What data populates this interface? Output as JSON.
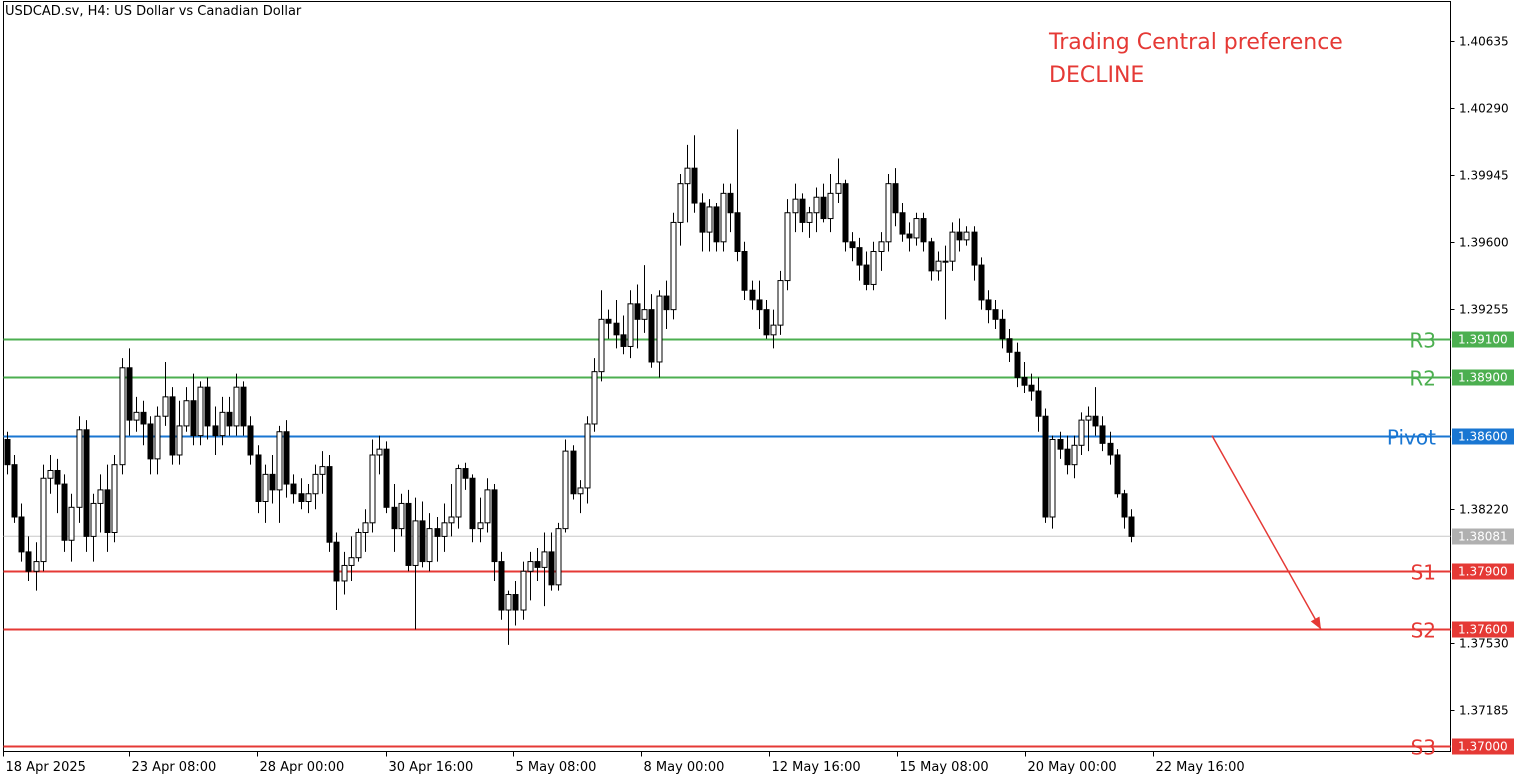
{
  "header": {
    "title": "USDCAD.sv, H4:  US Dollar vs Canadian Dollar"
  },
  "annotation": {
    "line1": "Trading Central preference",
    "line2": "DECLINE",
    "color": "#e53935"
  },
  "colors": {
    "bullish_body": "#ffffff",
    "bearish_body": "#000000",
    "wick": "#000000",
    "resistance": "#4caf50",
    "pivot": "#1976d2",
    "support": "#e53935",
    "current_price": "#b0b0b0"
  },
  "chart_data": {
    "type": "candlestick",
    "symbol": "USDCAD.sv",
    "timeframe": "H4",
    "ylim": [
      1.3697,
      1.4084
    ],
    "y_ticks": [
      "1.40635",
      "1.40290",
      "1.39945",
      "1.39600",
      "1.39255",
      "1.38220",
      "1.37530",
      "1.37185"
    ],
    "x_ticks": [
      "18 Apr 2025",
      "23 Apr 08:00",
      "28 Apr 00:00",
      "30 Apr 16:00",
      "5 May 08:00",
      "8 May 00:00",
      "12 May 16:00",
      "15 May 08:00",
      "20 May 00:00",
      "22 May 16:00"
    ],
    "current_price": "1.38081",
    "levels": [
      {
        "name": "R3",
        "value": "1.39100",
        "type": "resistance"
      },
      {
        "name": "R2",
        "value": "1.38900",
        "type": "resistance"
      },
      {
        "name": "Pivot",
        "value": "1.38600",
        "type": "pivot"
      },
      {
        "name": "S1",
        "value": "1.37900",
        "type": "support"
      },
      {
        "name": "S2",
        "value": "1.37600",
        "type": "support"
      },
      {
        "name": "S3",
        "value": "1.37000",
        "type": "support"
      }
    ],
    "projection": {
      "from_price": 1.386,
      "to_price": 1.376,
      "direction": "down"
    },
    "candles": [
      [
        1.3858,
        1.3862,
        1.384,
        1.3845
      ],
      [
        1.3845,
        1.385,
        1.3815,
        1.3818
      ],
      [
        1.3818,
        1.3825,
        1.3795,
        1.38
      ],
      [
        1.38,
        1.3808,
        1.3785,
        1.379
      ],
      [
        1.379,
        1.3805,
        1.378,
        1.3795
      ],
      [
        1.3795,
        1.3845,
        1.379,
        1.3838
      ],
      [
        1.3838,
        1.385,
        1.383,
        1.3842
      ],
      [
        1.3842,
        1.3848,
        1.382,
        1.3835
      ],
      [
        1.3835,
        1.384,
        1.38,
        1.3806
      ],
      [
        1.3806,
        1.383,
        1.3795,
        1.3823
      ],
      [
        1.3823,
        1.387,
        1.3815,
        1.3863
      ],
      [
        1.3863,
        1.3868,
        1.38,
        1.3808
      ],
      [
        1.3808,
        1.383,
        1.3795,
        1.3825
      ],
      [
        1.3825,
        1.384,
        1.381,
        1.3832
      ],
      [
        1.3832,
        1.3845,
        1.38,
        1.381
      ],
      [
        1.381,
        1.385,
        1.3805,
        1.3845
      ],
      [
        1.3845,
        1.39,
        1.384,
        1.3895
      ],
      [
        1.3895,
        1.3905,
        1.386,
        1.3868
      ],
      [
        1.3868,
        1.388,
        1.3862,
        1.3872
      ],
      [
        1.3872,
        1.3878,
        1.3855,
        1.3866
      ],
      [
        1.3866,
        1.387,
        1.384,
        1.3848
      ],
      [
        1.3848,
        1.3875,
        1.384,
        1.387
      ],
      [
        1.387,
        1.3898,
        1.3865,
        1.388
      ],
      [
        1.388,
        1.3885,
        1.3845,
        1.385
      ],
      [
        1.385,
        1.3878,
        1.3845,
        1.3865
      ],
      [
        1.3865,
        1.3885,
        1.3862,
        1.3878
      ],
      [
        1.3878,
        1.3892,
        1.3855,
        1.386
      ],
      [
        1.386,
        1.3888,
        1.3855,
        1.3885
      ],
      [
        1.3885,
        1.389,
        1.3858,
        1.3865
      ],
      [
        1.3865,
        1.3875,
        1.385,
        1.386
      ],
      [
        1.386,
        1.388,
        1.3855,
        1.3872
      ],
      [
        1.3872,
        1.388,
        1.386,
        1.3865
      ],
      [
        1.3865,
        1.3892,
        1.386,
        1.3885
      ],
      [
        1.3885,
        1.3888,
        1.386,
        1.3865
      ],
      [
        1.3865,
        1.387,
        1.3845,
        1.385
      ],
      [
        1.385,
        1.3855,
        1.382,
        1.3826
      ],
      [
        1.3826,
        1.3845,
        1.3815,
        1.384
      ],
      [
        1.384,
        1.385,
        1.3825,
        1.3832
      ],
      [
        1.3832,
        1.3865,
        1.3815,
        1.3862
      ],
      [
        1.3862,
        1.3868,
        1.3828,
        1.3835
      ],
      [
        1.3835,
        1.384,
        1.3825,
        1.383
      ],
      [
        1.383,
        1.3838,
        1.3822,
        1.3826
      ],
      [
        1.3826,
        1.3835,
        1.382,
        1.383
      ],
      [
        1.383,
        1.3845,
        1.3822,
        1.384
      ],
      [
        1.384,
        1.3852,
        1.383,
        1.3844
      ],
      [
        1.3844,
        1.385,
        1.38,
        1.3805
      ],
      [
        1.3805,
        1.381,
        1.377,
        1.3785
      ],
      [
        1.3785,
        1.38,
        1.3778,
        1.3793
      ],
      [
        1.3793,
        1.3808,
        1.3785,
        1.3797
      ],
      [
        1.3797,
        1.3812,
        1.3795,
        1.381
      ],
      [
        1.381,
        1.3822,
        1.38,
        1.3815
      ],
      [
        1.3815,
        1.3858,
        1.381,
        1.385
      ],
      [
        1.385,
        1.386,
        1.384,
        1.3853
      ],
      [
        1.3853,
        1.3857,
        1.382,
        1.3823
      ],
      [
        1.3823,
        1.3835,
        1.38,
        1.3812
      ],
      [
        1.3812,
        1.383,
        1.3808,
        1.3825
      ],
      [
        1.3825,
        1.3832,
        1.379,
        1.3793
      ],
      [
        1.3793,
        1.3828,
        1.376,
        1.3816
      ],
      [
        1.3816,
        1.3826,
        1.3792,
        1.3795
      ],
      [
        1.3795,
        1.382,
        1.379,
        1.3812
      ],
      [
        1.3812,
        1.3818,
        1.3795,
        1.3808
      ],
      [
        1.3808,
        1.3825,
        1.38,
        1.3815
      ],
      [
        1.3815,
        1.3835,
        1.3808,
        1.3818
      ],
      [
        1.3818,
        1.3845,
        1.3812,
        1.3843
      ],
      [
        1.3843,
        1.3846,
        1.3832,
        1.3838
      ],
      [
        1.3838,
        1.384,
        1.3805,
        1.3812
      ],
      [
        1.3812,
        1.3828,
        1.3805,
        1.3815
      ],
      [
        1.3815,
        1.3838,
        1.381,
        1.3832
      ],
      [
        1.3832,
        1.3835,
        1.3785,
        1.3795
      ],
      [
        1.3795,
        1.38,
        1.3765,
        1.377
      ],
      [
        1.377,
        1.378,
        1.3752,
        1.3778
      ],
      [
        1.3778,
        1.3785,
        1.3762,
        1.377
      ],
      [
        1.377,
        1.3795,
        1.3765,
        1.379
      ],
      [
        1.379,
        1.38,
        1.3775,
        1.3795
      ],
      [
        1.3795,
        1.3802,
        1.3785,
        1.3792
      ],
      [
        1.3792,
        1.381,
        1.3772,
        1.38
      ],
      [
        1.38,
        1.381,
        1.378,
        1.3783
      ],
      [
        1.3783,
        1.3815,
        1.378,
        1.3812
      ],
      [
        1.3812,
        1.3858,
        1.381,
        1.3852
      ],
      [
        1.3852,
        1.3855,
        1.3827,
        1.383
      ],
      [
        1.383,
        1.3837,
        1.382,
        1.3833
      ],
      [
        1.3833,
        1.387,
        1.3825,
        1.3866
      ],
      [
        1.3866,
        1.39,
        1.3862,
        1.3893
      ],
      [
        1.3893,
        1.3935,
        1.3888,
        1.392
      ],
      [
        1.392,
        1.3925,
        1.391,
        1.3918
      ],
      [
        1.3918,
        1.393,
        1.3905,
        1.3912
      ],
      [
        1.3912,
        1.3922,
        1.3902,
        1.3906
      ],
      [
        1.3906,
        1.3935,
        1.39,
        1.3928
      ],
      [
        1.3928,
        1.3938,
        1.3905,
        1.392
      ],
      [
        1.392,
        1.3948,
        1.3913,
        1.3925
      ],
      [
        1.3925,
        1.3933,
        1.3895,
        1.3898
      ],
      [
        1.3898,
        1.3935,
        1.389,
        1.3932
      ],
      [
        1.3932,
        1.394,
        1.3915,
        1.3925
      ],
      [
        1.3925,
        1.3975,
        1.392,
        1.397
      ],
      [
        1.397,
        1.3995,
        1.3958,
        1.399
      ],
      [
        1.399,
        1.401,
        1.397,
        1.3998
      ],
      [
        1.3998,
        1.4015,
        1.3975,
        1.398
      ],
      [
        1.398,
        1.3985,
        1.3955,
        1.3965
      ],
      [
        1.3965,
        1.3982,
        1.3955,
        1.3978
      ],
      [
        1.3978,
        1.398,
        1.3955,
        1.396
      ],
      [
        1.396,
        1.399,
        1.3955,
        1.3985
      ],
      [
        1.3985,
        1.399,
        1.3965,
        1.3975
      ],
      [
        1.3975,
        1.4018,
        1.395,
        1.3955
      ],
      [
        1.3955,
        1.396,
        1.393,
        1.3935
      ],
      [
        1.3935,
        1.394,
        1.3925,
        1.393
      ],
      [
        1.393,
        1.394,
        1.3915,
        1.3925
      ],
      [
        1.3925,
        1.393,
        1.391,
        1.3912
      ],
      [
        1.3912,
        1.3925,
        1.3905,
        1.3917
      ],
      [
        1.3917,
        1.3945,
        1.3912,
        1.394
      ],
      [
        1.394,
        1.3982,
        1.3935,
        1.3975
      ],
      [
        1.3975,
        1.399,
        1.3965,
        1.3982
      ],
      [
        1.3982,
        1.3985,
        1.3965,
        1.397
      ],
      [
        1.397,
        1.3978,
        1.3962,
        1.3975
      ],
      [
        1.3975,
        1.3988,
        1.3965,
        1.3983
      ],
      [
        1.3983,
        1.399,
        1.397,
        1.3972
      ],
      [
        1.3972,
        1.3995,
        1.3965,
        1.3985
      ],
      [
        1.3985,
        1.4003,
        1.398,
        1.399
      ],
      [
        1.399,
        1.3992,
        1.3955,
        1.396
      ],
      [
        1.396,
        1.3965,
        1.395,
        1.3957
      ],
      [
        1.3957,
        1.3962,
        1.394,
        1.3948
      ],
      [
        1.3948,
        1.3955,
        1.3935,
        1.3938
      ],
      [
        1.3938,
        1.396,
        1.3935,
        1.3955
      ],
      [
        1.3955,
        1.3965,
        1.3945,
        1.396
      ],
      [
        1.396,
        1.3995,
        1.3955,
        1.399
      ],
      [
        1.399,
        1.3998,
        1.3968,
        1.3975
      ],
      [
        1.3975,
        1.398,
        1.396,
        1.3964
      ],
      [
        1.3964,
        1.397,
        1.3955,
        1.3962
      ],
      [
        1.3962,
        1.3975,
        1.3958,
        1.3972
      ],
      [
        1.3972,
        1.3975,
        1.3955,
        1.396
      ],
      [
        1.396,
        1.3962,
        1.394,
        1.3945
      ],
      [
        1.3945,
        1.3955,
        1.394,
        1.395
      ],
      [
        1.395,
        1.3958,
        1.392,
        1.395
      ],
      [
        1.395,
        1.397,
        1.3945,
        1.3965
      ],
      [
        1.3965,
        1.3972,
        1.3955,
        1.3961
      ],
      [
        1.3961,
        1.3968,
        1.3958,
        1.3965
      ],
      [
        1.3965,
        1.3968,
        1.394,
        1.3948
      ],
      [
        1.3948,
        1.3952,
        1.3925,
        1.393
      ],
      [
        1.393,
        1.3935,
        1.3918,
        1.3925
      ],
      [
        1.3925,
        1.393,
        1.3915,
        1.392
      ],
      [
        1.392,
        1.3925,
        1.3905,
        1.391
      ],
      [
        1.391,
        1.3915,
        1.3898,
        1.3903
      ],
      [
        1.3903,
        1.3908,
        1.3885,
        1.389
      ],
      [
        1.389,
        1.3898,
        1.3882,
        1.3886
      ],
      [
        1.3886,
        1.3892,
        1.3878,
        1.3883
      ],
      [
        1.3883,
        1.389,
        1.3862,
        1.387
      ],
      [
        1.387,
        1.3874,
        1.3815,
        1.3818
      ],
      [
        1.3818,
        1.386,
        1.3812,
        1.3858
      ],
      [
        1.3858,
        1.3862,
        1.3848,
        1.3853
      ],
      [
        1.3853,
        1.386,
        1.384,
        1.3845
      ],
      [
        1.3845,
        1.386,
        1.3838,
        1.3855
      ],
      [
        1.3855,
        1.3872,
        1.385,
        1.3868
      ],
      [
        1.3868,
        1.3875,
        1.3852,
        1.387
      ],
      [
        1.387,
        1.3885,
        1.386,
        1.3865
      ],
      [
        1.3865,
        1.387,
        1.3852,
        1.3856
      ],
      [
        1.3856,
        1.3862,
        1.3845,
        1.385
      ],
      [
        1.385,
        1.3853,
        1.3828,
        1.383
      ],
      [
        1.383,
        1.3832,
        1.3812,
        1.3818
      ],
      [
        1.3818,
        1.3822,
        1.3805,
        1.3808
      ]
    ]
  }
}
